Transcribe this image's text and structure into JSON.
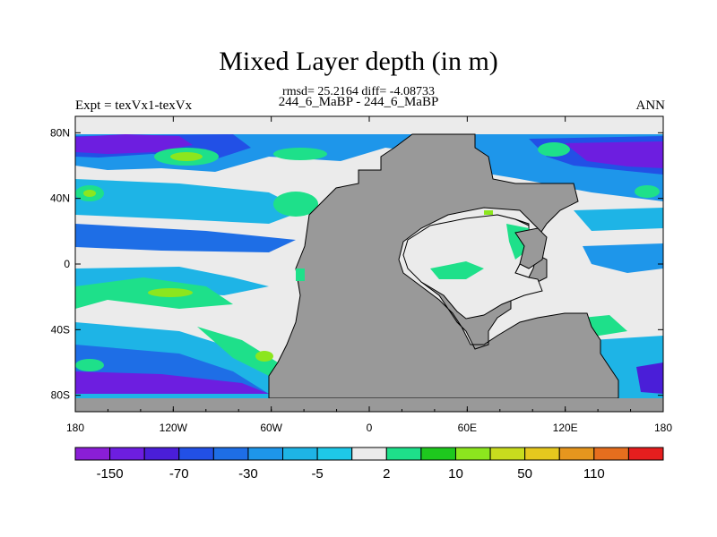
{
  "title": "Mixed Layer depth (in m)",
  "stats": "rmsd= 25.2164 diff= -4.08733",
  "subtitle": "244_6_MaBP - 244_6_MaBP",
  "left_label": "Expt = texVx1-texVx",
  "right_label": "ANN",
  "map": {
    "lon_range": [
      -180,
      180
    ],
    "lat_range": [
      -90,
      90
    ],
    "x_ticks": [
      {
        "value": -180,
        "label": "180"
      },
      {
        "value": -120,
        "label": "120W"
      },
      {
        "value": -60,
        "label": "60W"
      },
      {
        "value": 0,
        "label": "0"
      },
      {
        "value": 60,
        "label": "60E"
      },
      {
        "value": 120,
        "label": "120E"
      },
      {
        "value": 180,
        "label": "180"
      }
    ],
    "y_ticks": [
      {
        "value": 80,
        "label": "80N"
      },
      {
        "value": 40,
        "label": "40N"
      },
      {
        "value": 0,
        "label": "0"
      },
      {
        "value": -40,
        "label": "40S"
      },
      {
        "value": -80,
        "label": "80S"
      }
    ],
    "land_color": "#999999",
    "ocean_near_zero_color": "#ebebeb"
  },
  "colorbar": {
    "colors": [
      "#8a1ed6",
      "#6d1ee0",
      "#4a1ed8",
      "#2250e6",
      "#1e6ee6",
      "#1e96ea",
      "#1eb4e6",
      "#1ec8e8",
      "#ebebeb",
      "#1ee08a",
      "#1ec81e",
      "#8ce61e",
      "#c8dc1e",
      "#e6c81e",
      "#e6961e",
      "#e66e1e",
      "#e61e1e"
    ],
    "labels": [
      {
        "after_box": 1,
        "text": "-150"
      },
      {
        "after_box": 3,
        "text": "-70"
      },
      {
        "after_box": 5,
        "text": "-30"
      },
      {
        "after_box": 7,
        "text": "-5"
      },
      {
        "after_box": 9,
        "text": "2"
      },
      {
        "after_box": 11,
        "text": "10"
      },
      {
        "after_box": 13,
        "text": "50"
      },
      {
        "after_box": 15,
        "text": "110"
      }
    ]
  }
}
